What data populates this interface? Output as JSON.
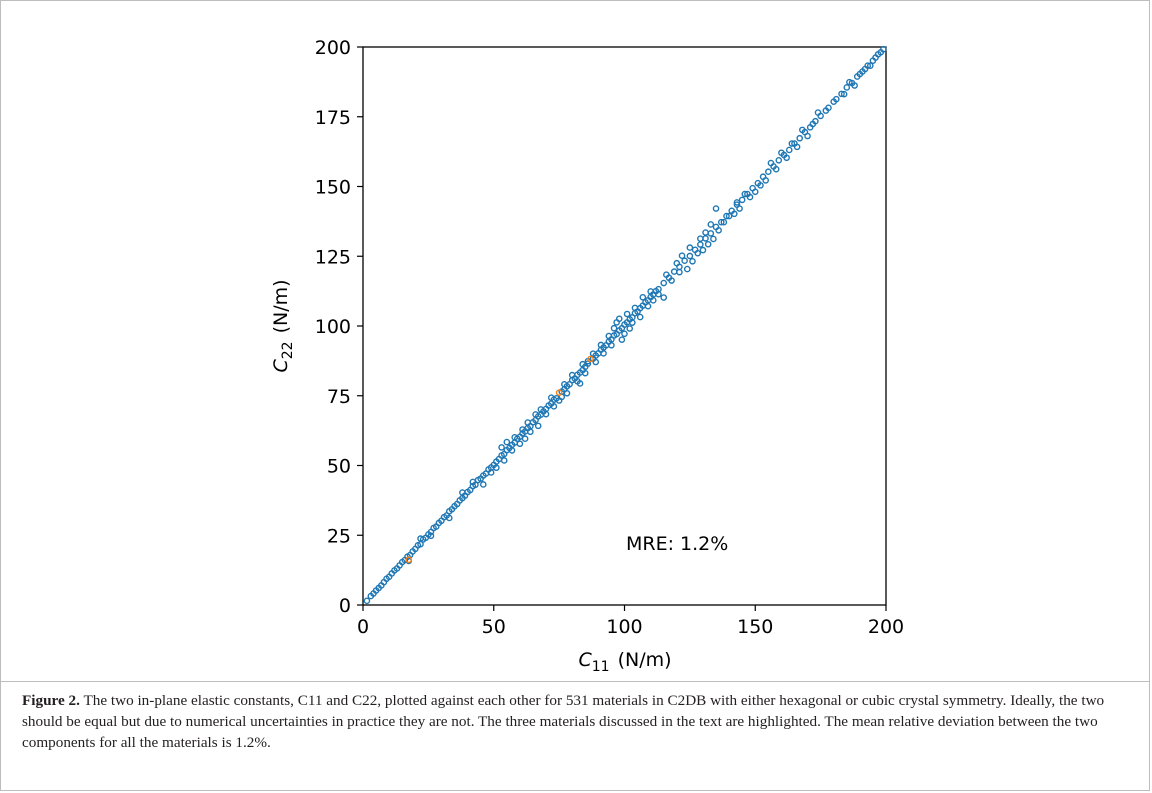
{
  "chart_data": {
    "type": "scatter",
    "x_axis": {
      "symbol": "C",
      "subscript": "11",
      "unit": "(N/m)",
      "range": [
        0,
        200
      ],
      "ticks": [
        0,
        50,
        100,
        150,
        200
      ]
    },
    "y_axis": {
      "symbol": "C",
      "subscript": "22",
      "unit": "(N/m)",
      "range": [
        0,
        200
      ],
      "ticks": [
        0,
        25,
        50,
        75,
        100,
        125,
        150,
        175,
        200
      ]
    },
    "annotation": "MRE: 1.2%",
    "grid": false,
    "colors": {
      "materials": "#1f77b4",
      "highlighted": "#ff7f0e"
    },
    "series": [
      {
        "role": "materials",
        "points": [
          [
            1.5,
            1.5
          ],
          [
            3,
            3.2
          ],
          [
            4,
            4.1
          ],
          [
            5,
            5.2
          ],
          [
            6,
            6.1
          ],
          [
            7,
            7
          ],
          [
            8,
            8.2
          ],
          [
            9,
            9.4
          ],
          [
            10,
            10.1
          ],
          [
            11,
            11.3
          ],
          [
            12,
            12.4
          ],
          [
            13,
            13.1
          ],
          [
            14,
            14.2
          ],
          [
            15,
            15.4
          ],
          [
            16,
            16.1
          ],
          [
            17,
            17.3
          ],
          [
            18,
            17.9
          ],
          [
            19,
            19.2
          ],
          [
            20,
            20.1
          ],
          [
            21,
            21.4
          ],
          [
            22,
            21.8
          ],
          [
            23,
            23.5
          ],
          [
            24,
            24.1
          ],
          [
            25,
            25.3
          ],
          [
            26,
            26.2
          ],
          [
            27,
            27.6
          ],
          [
            28,
            28.1
          ],
          [
            29,
            29.4
          ],
          [
            30,
            30.2
          ],
          [
            31,
            31.5
          ],
          [
            32,
            32.1
          ],
          [
            33,
            33.6
          ],
          [
            34,
            34.3
          ],
          [
            35,
            35.4
          ],
          [
            36,
            36.2
          ],
          [
            37,
            37.5
          ],
          [
            38,
            38.3
          ],
          [
            39,
            39.2
          ],
          [
            40,
            40.5
          ],
          [
            41,
            41.2
          ],
          [
            42,
            42.6
          ],
          [
            43,
            43.1
          ],
          [
            44,
            44.8
          ],
          [
            45,
            45.3
          ],
          [
            46,
            46.4
          ],
          [
            47,
            47.1
          ],
          [
            48,
            48.6
          ],
          [
            49,
            49.3
          ],
          [
            50,
            50.2
          ],
          [
            51,
            51.4
          ],
          [
            52,
            52.3
          ],
          [
            53,
            53.6
          ],
          [
            54,
            54.1
          ],
          [
            55,
            55.5
          ],
          [
            56,
            56.3
          ],
          [
            57,
            57.4
          ],
          [
            58,
            58.2
          ],
          [
            59,
            59.6
          ],
          [
            60,
            60.3
          ],
          [
            61,
            61.5
          ],
          [
            62,
            62.2
          ],
          [
            63,
            63.4
          ],
          [
            64,
            64.1
          ],
          [
            65,
            65.5
          ],
          [
            66,
            66.3
          ],
          [
            67,
            67.6
          ],
          [
            68,
            68.2
          ],
          [
            69,
            69.4
          ],
          [
            70,
            70.3
          ],
          [
            71,
            71.5
          ],
          [
            72,
            72.2
          ],
          [
            73,
            73.6
          ],
          [
            74,
            74.1
          ],
          [
            76,
            76.5
          ],
          [
            77,
            77.3
          ],
          [
            78,
            78.4
          ],
          [
            79,
            79.1
          ],
          [
            80,
            80.6
          ],
          [
            81,
            81.2
          ],
          [
            82,
            82.5
          ],
          [
            83,
            83.3
          ],
          [
            84,
            84.2
          ],
          [
            85,
            85.4
          ],
          [
            86,
            86.5
          ],
          [
            88,
            88.3
          ],
          [
            89,
            89.4
          ],
          [
            90,
            90.2
          ],
          [
            91,
            91.5
          ],
          [
            92,
            92.3
          ],
          [
            93,
            93.1
          ],
          [
            94,
            94.4
          ],
          [
            95,
            95.2
          ],
          [
            96,
            96.6
          ],
          [
            97,
            97.1
          ],
          [
            98,
            98.4
          ],
          [
            99,
            99.2
          ],
          [
            100,
            100.5
          ],
          [
            101,
            101.3
          ],
          [
            102,
            102.4
          ],
          [
            103,
            103.1
          ],
          [
            104,
            104.6
          ],
          [
            105,
            105.2
          ],
          [
            106,
            106.4
          ],
          [
            107,
            107.3
          ],
          [
            108,
            108.5
          ],
          [
            109,
            109.2
          ],
          [
            110,
            110.4
          ],
          [
            111,
            111.3
          ],
          [
            112,
            112.5
          ],
          [
            113,
            113.2
          ],
          [
            115,
            115.4
          ],
          [
            117,
            117.3
          ],
          [
            119,
            119.5
          ],
          [
            121,
            121.2
          ],
          [
            123,
            123.4
          ],
          [
            125,
            125.1
          ],
          [
            127,
            127.3
          ],
          [
            129,
            129.2
          ],
          [
            131,
            131.4
          ],
          [
            133,
            133.2
          ],
          [
            135,
            135.5
          ],
          [
            137,
            137.2
          ],
          [
            139,
            139.4
          ],
          [
            141,
            141.3
          ],
          [
            143,
            143.5
          ],
          [
            145,
            145.2
          ],
          [
            147,
            147.3
          ],
          [
            149,
            149.4
          ],
          [
            151,
            151.2
          ],
          [
            153,
            153.5
          ],
          [
            155,
            155.3
          ],
          [
            157,
            157.2
          ],
          [
            159,
            159.4
          ],
          [
            161,
            161.3
          ],
          [
            163,
            163.1
          ],
          [
            165,
            165.4
          ],
          [
            167,
            167.3
          ],
          [
            169,
            169.5
          ],
          [
            171,
            171.2
          ],
          [
            173,
            173.4
          ],
          [
            175,
            175.3
          ],
          [
            177,
            177.2
          ],
          [
            180,
            180.4
          ],
          [
            183,
            183.2
          ],
          [
            185,
            185.5
          ],
          [
            187,
            187.1
          ],
          [
            189,
            189.4
          ],
          [
            191,
            191.2
          ],
          [
            193,
            193.3
          ],
          [
            195,
            195.1
          ],
          [
            197,
            197.4
          ],
          [
            199,
            199.2
          ],
          [
            17.5,
            15.8
          ],
          [
            22,
            23.8
          ],
          [
            26,
            24.8
          ],
          [
            33,
            31.2
          ],
          [
            38,
            40.3
          ],
          [
            42,
            44.1
          ],
          [
            46,
            43.2
          ],
          [
            49,
            47.5
          ],
          [
            51,
            49.2
          ],
          [
            53,
            56.5
          ],
          [
            54,
            51.8
          ],
          [
            55,
            58.4
          ],
          [
            57,
            55.4
          ],
          [
            58,
            60.1
          ],
          [
            60,
            57.8
          ],
          [
            61,
            62.9
          ],
          [
            62,
            59.6
          ],
          [
            63,
            65.4
          ],
          [
            64,
            62.1
          ],
          [
            66,
            68.3
          ],
          [
            67,
            64.2
          ],
          [
            68,
            70.1
          ],
          [
            70,
            68.4
          ],
          [
            72,
            74.3
          ],
          [
            73,
            71.2
          ],
          [
            75,
            73.3
          ],
          [
            76,
            74.6
          ],
          [
            77,
            79.1
          ],
          [
            78,
            75.9
          ],
          [
            80,
            82.4
          ],
          [
            82,
            80.2
          ],
          [
            83,
            79.4
          ],
          [
            84,
            86.3
          ],
          [
            85,
            83.1
          ],
          [
            86,
            87.4
          ],
          [
            88,
            90.1
          ],
          [
            89,
            87.1
          ],
          [
            91,
            93.2
          ],
          [
            92,
            90.2
          ],
          [
            94,
            96.4
          ],
          [
            95,
            93.1
          ],
          [
            96,
            99.2
          ],
          [
            97,
            101.3
          ],
          [
            98,
            102.6
          ],
          [
            99,
            95.1
          ],
          [
            100,
            97.2
          ],
          [
            101,
            104.3
          ],
          [
            102,
            99.1
          ],
          [
            103,
            101.2
          ],
          [
            104,
            106.5
          ],
          [
            106,
            103.2
          ],
          [
            107,
            110.3
          ],
          [
            109,
            107.1
          ],
          [
            110,
            112.4
          ],
          [
            111,
            109.2
          ],
          [
            113,
            111.4
          ],
          [
            115,
            110.2
          ],
          [
            116,
            118.4
          ],
          [
            118,
            116.3
          ],
          [
            120,
            122.5
          ],
          [
            121,
            119.3
          ],
          [
            122,
            125.2
          ],
          [
            124,
            120.4
          ],
          [
            125,
            128.1
          ],
          [
            126,
            123.2
          ],
          [
            128,
            126.1
          ],
          [
            129,
            131.3
          ],
          [
            130,
            127.2
          ],
          [
            131,
            133.5
          ],
          [
            132,
            129.3
          ],
          [
            133,
            136.4
          ],
          [
            134,
            131.2
          ],
          [
            135,
            142.1
          ],
          [
            136,
            134.3
          ],
          [
            138,
            137.2
          ],
          [
            140,
            139.4
          ],
          [
            142,
            140.2
          ],
          [
            143,
            144.3
          ],
          [
            144,
            142.1
          ],
          [
            146,
            147.3
          ],
          [
            148,
            146.2
          ],
          [
            150,
            148.1
          ],
          [
            152,
            150.4
          ],
          [
            154,
            152.2
          ],
          [
            156,
            158.4
          ],
          [
            158,
            156.2
          ],
          [
            160,
            162.1
          ],
          [
            162,
            160.3
          ],
          [
            164,
            165.4
          ],
          [
            166,
            164.2
          ],
          [
            168,
            170.3
          ],
          [
            170,
            168.1
          ],
          [
            172,
            172.4
          ],
          [
            174,
            176.5
          ],
          [
            178,
            178.2
          ],
          [
            181,
            181.3
          ],
          [
            184,
            183.1
          ],
          [
            186,
            187.4
          ],
          [
            188,
            186.2
          ],
          [
            190,
            190.3
          ],
          [
            192,
            192.1
          ],
          [
            194,
            193.3
          ],
          [
            196,
            196.2
          ],
          [
            198,
            198.1
          ]
        ]
      },
      {
        "role": "highlighted",
        "points": [
          [
            17.5,
            16.2
          ],
          [
            75,
            76.1
          ],
          [
            87,
            88.2
          ]
        ]
      }
    ]
  },
  "caption": {
    "lead": "Figure 2.",
    "text": "The two in-plane elastic constants, C11 and C22, plotted against each other for 531 materials in C2DB with either hexagonal or cubic crystal symmetry. Ideally, the two should be equal but due to numerical uncertainties in practice they are not. The three materials discussed in the text are highlighted. The mean relative deviation between the two components for all the materials is 1.2%."
  }
}
